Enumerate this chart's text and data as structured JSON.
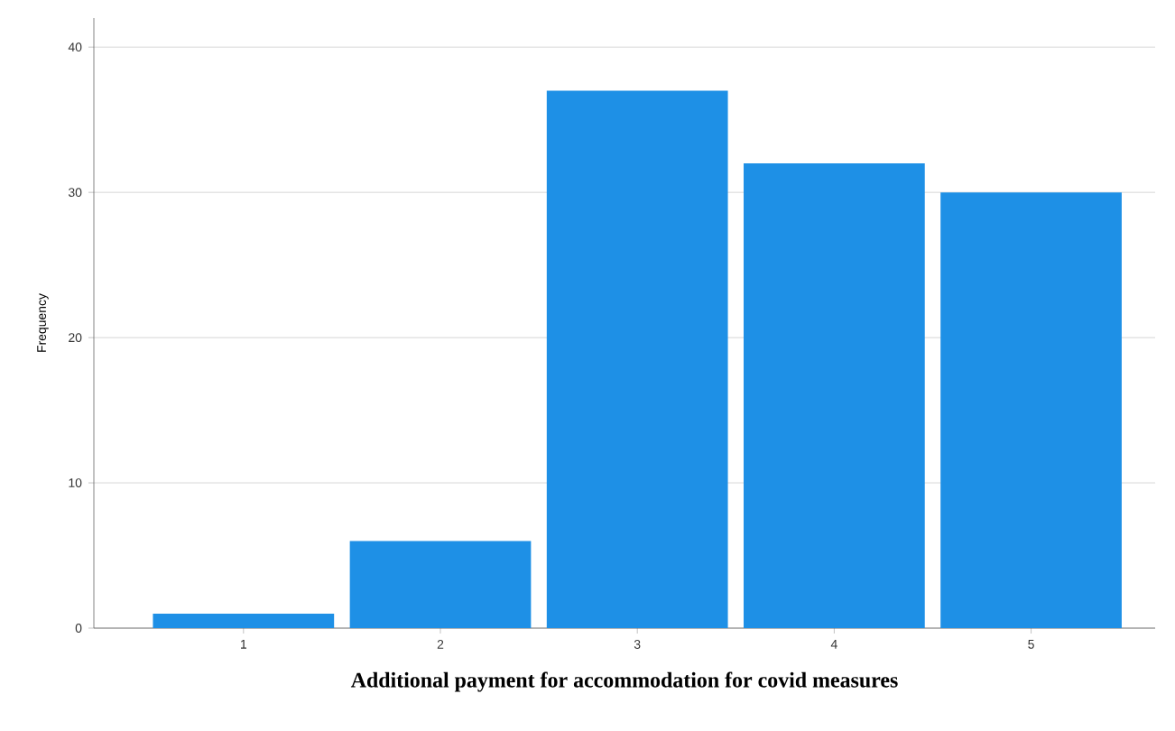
{
  "chart_data": {
    "type": "bar",
    "xlabel": "Additional payment for accommodation for covid measures",
    "ylabel": "Frequency",
    "categories": [
      "1",
      "2",
      "3",
      "4",
      "5"
    ],
    "values": [
      1,
      6,
      37,
      32,
      30
    ],
    "color": "#1e90e6",
    "ylim": [
      0,
      42
    ],
    "yticks": [
      0,
      10,
      20,
      30,
      40
    ],
    "grid": "y"
  }
}
